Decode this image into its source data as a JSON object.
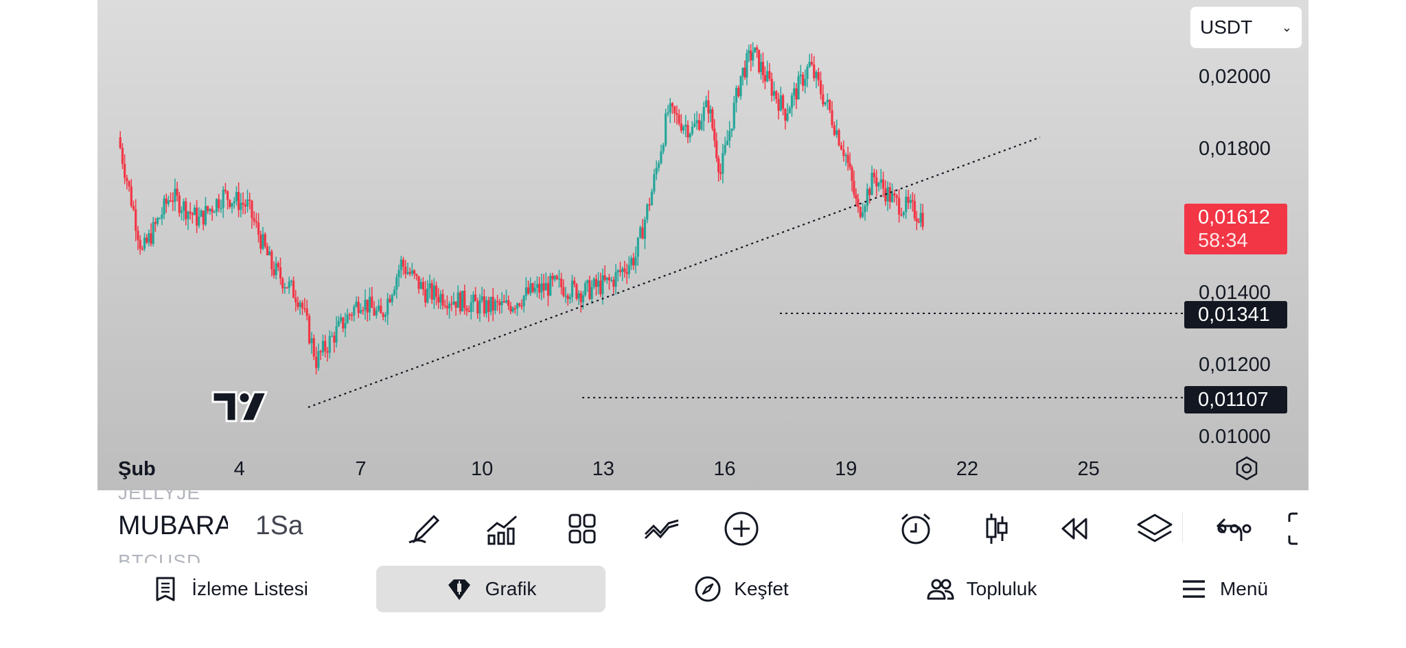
{
  "chart": {
    "currency": "USDT",
    "price_axis": [
      "0,02000",
      "0,01800",
      "0,01400",
      "0,01200",
      "0.01000"
    ],
    "time_axis": [
      "Şub",
      "4",
      "7",
      "10",
      "13",
      "16",
      "19",
      "22",
      "25"
    ],
    "current_price": "0,01612",
    "countdown": "58:34",
    "level_1": "0,01341",
    "level_2": "0,01107",
    "logo": "TradingView logo",
    "colors": {
      "up": "#26a69a",
      "down": "#f23645",
      "price_tag": "#f23645",
      "level_tag": "#131722"
    }
  },
  "chart_data": {
    "type": "candlestick",
    "x_ticks": [
      "Şub",
      "4",
      "7",
      "10",
      "13",
      "16",
      "19",
      "22",
      "25"
    ],
    "y_ticks": [
      0.02,
      0.018,
      0.014,
      0.012,
      0.01
    ],
    "ylim": [
      0.01,
      0.021
    ],
    "last_price": 0.01612,
    "horizontal_levels": [
      0.01341,
      0.01107
    ],
    "series": [
      {
        "name": "MUBARA",
        "points": [
          {
            "day": 1,
            "close": 0.0183
          },
          {
            "day": 1.6,
            "close": 0.0151
          },
          {
            "day": 2.3,
            "close": 0.0167
          },
          {
            "day": 3,
            "close": 0.016
          },
          {
            "day": 3.6,
            "close": 0.0167
          },
          {
            "day": 4.2,
            "close": 0.0164
          },
          {
            "day": 4.8,
            "close": 0.0147
          },
          {
            "day": 5.5,
            "close": 0.0138
          },
          {
            "day": 5.9,
            "close": 0.0121
          },
          {
            "day": 6.4,
            "close": 0.0129
          },
          {
            "day": 7,
            "close": 0.0138
          },
          {
            "day": 7.5,
            "close": 0.0133
          },
          {
            "day": 8,
            "close": 0.0148
          },
          {
            "day": 8.6,
            "close": 0.014
          },
          {
            "day": 9.3,
            "close": 0.0138
          },
          {
            "day": 10,
            "close": 0.0136
          },
          {
            "day": 10.6,
            "close": 0.0136
          },
          {
            "day": 11.2,
            "close": 0.014
          },
          {
            "day": 11.8,
            "close": 0.0142
          },
          {
            "day": 12.5,
            "close": 0.014
          },
          {
            "day": 13.2,
            "close": 0.0143
          },
          {
            "day": 13.8,
            "close": 0.015
          },
          {
            "day": 14.2,
            "close": 0.0168
          },
          {
            "day": 14.6,
            "close": 0.019
          },
          {
            "day": 15.2,
            "close": 0.0185
          },
          {
            "day": 15.6,
            "close": 0.0192
          },
          {
            "day": 15.9,
            "close": 0.0173
          },
          {
            "day": 16.4,
            "close": 0.02
          },
          {
            "day": 16.7,
            "close": 0.0207
          },
          {
            "day": 17,
            "close": 0.02
          },
          {
            "day": 17.5,
            "close": 0.019
          },
          {
            "day": 18.1,
            "close": 0.0203
          },
          {
            "day": 18.6,
            "close": 0.019
          },
          {
            "day": 19,
            "close": 0.0178
          },
          {
            "day": 19.3,
            "close": 0.0162
          },
          {
            "day": 19.7,
            "close": 0.0172
          },
          {
            "day": 20.2,
            "close": 0.0165
          },
          {
            "day": 20.6,
            "close": 0.0163
          },
          {
            "day": 20.9,
            "close": 0.0161
          }
        ]
      }
    ],
    "trendline": {
      "from": {
        "day": 5.7,
        "price": 0.0108
      },
      "to": {
        "day": 23.8,
        "price": 0.0183
      }
    }
  },
  "toolbar": {
    "symbol_above": "JELLYJE",
    "symbol": "MUBARA",
    "symbol_below": "BTCUSD",
    "interval": "1Sa",
    "tools": [
      "pen-icon",
      "indicators-icon",
      "templates-icon",
      "compare-icon",
      "add-icon",
      "alarm-icon",
      "candle-type-icon",
      "replay-icon",
      "layers-icon",
      "more-icon",
      "undo-icon",
      "fullscreen-icon"
    ]
  },
  "nav": {
    "watchlist": "İzleme Listesi",
    "chart": "Grafik",
    "explore": "Keşfet",
    "community": "Topluluk",
    "menu": "Menü"
  }
}
